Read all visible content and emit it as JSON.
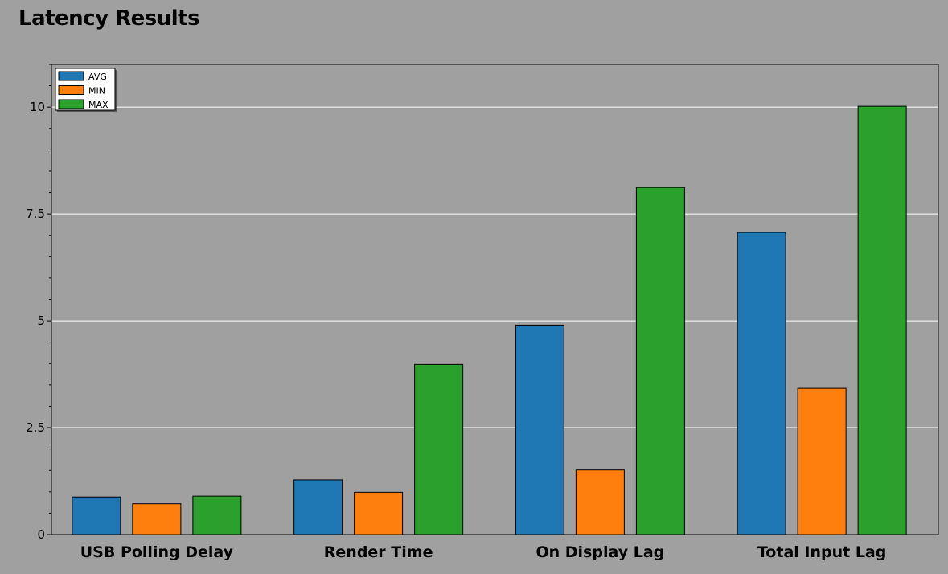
{
  "chart_data": {
    "type": "bar",
    "title": "Latency Results",
    "xlabel": "",
    "ylabel": "",
    "categories": [
      "USB Polling Delay",
      "Render Time",
      "On Display Lag",
      "Total Input Lag"
    ],
    "series": [
      {
        "name": "AVG",
        "color": "#1f77b4",
        "values": [
          0.88,
          1.28,
          4.9,
          7.07
        ]
      },
      {
        "name": "MIN",
        "color": "#ff7f0e",
        "values": [
          0.72,
          0.99,
          1.51,
          3.42
        ]
      },
      {
        "name": "MAX",
        "color": "#2ca02c",
        "values": [
          0.9,
          3.98,
          8.12,
          10.02
        ]
      }
    ],
    "ylim": [
      0,
      11
    ],
    "yticks": [
      0,
      2.5,
      5,
      7.5,
      10
    ],
    "ytick_labels": [
      "0",
      "2.5",
      "5",
      "7.5",
      "10"
    ],
    "grid": "horizontal",
    "legend_position": "top-left"
  }
}
